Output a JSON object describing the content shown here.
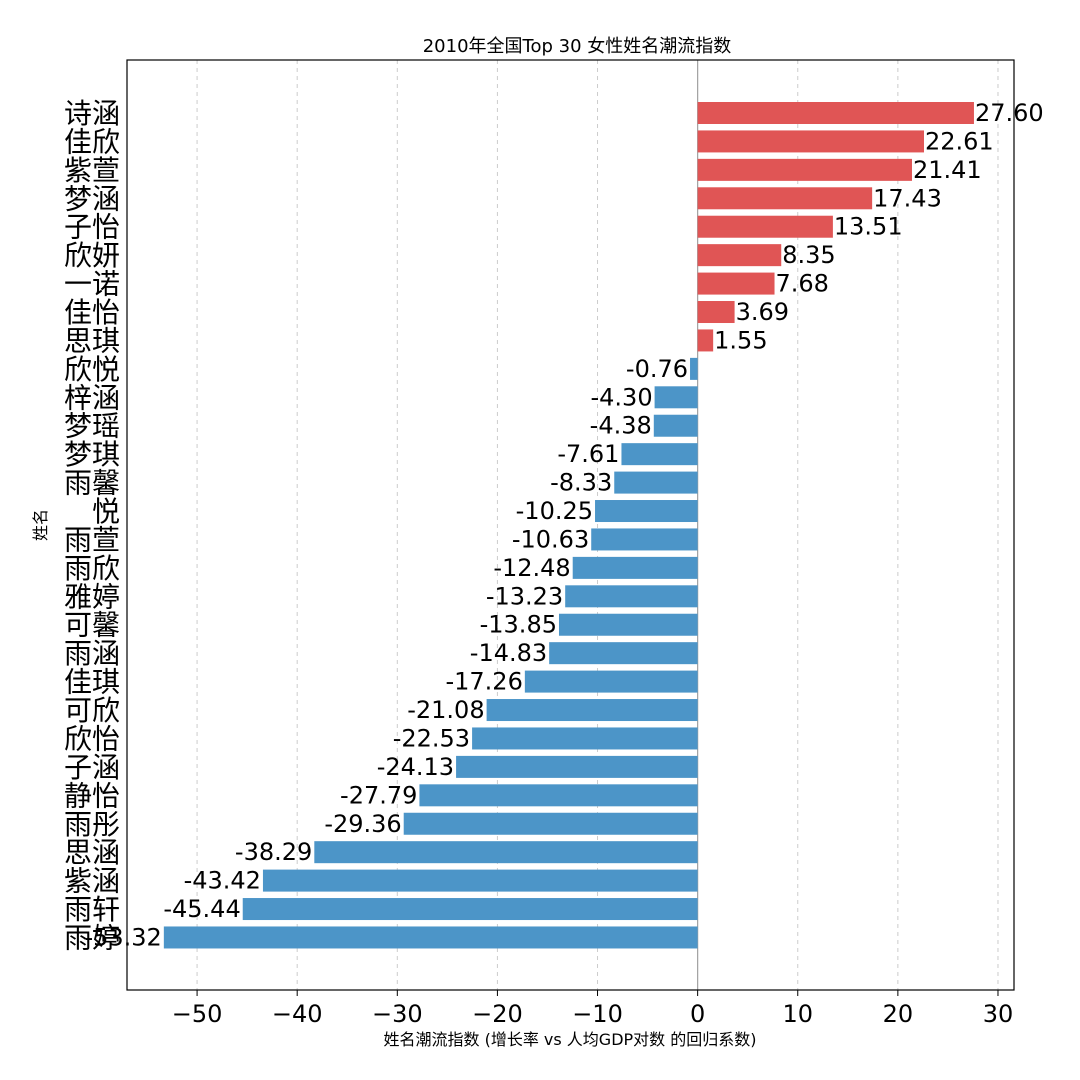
{
  "chart_data": {
    "type": "bar",
    "orientation": "horizontal",
    "title": "2010年全国Top 30 女性姓名潮流指数",
    "xlabel": "姓名潮流指数 (增长率 vs 人均GDP对数 的回归系数)",
    "ylabel": "姓名",
    "xlim": [
      -57,
      31.6
    ],
    "x_ticks": [
      -50,
      -40,
      -30,
      -20,
      -10,
      0,
      10,
      20,
      30
    ],
    "x_tick_labels": [
      "−50",
      "−40",
      "−30",
      "−20",
      "−10",
      "0",
      "10",
      "20",
      "30"
    ],
    "grid": "x, dashed",
    "categories": [
      "诗涵",
      "佳欣",
      "紫萱",
      "梦涵",
      "子怡",
      "欣妍",
      "一诺",
      "佳怡",
      "思琪",
      "欣悦",
      "梓涵",
      "梦瑶",
      "梦琪",
      "雨馨",
      "悦",
      "雨萱",
      "雨欣",
      "雅婷",
      "可馨",
      "雨涵",
      "佳琪",
      "可欣",
      "欣怡",
      "子涵",
      "静怡",
      "雨彤",
      "思涵",
      "紫涵",
      "雨轩",
      "雨婷"
    ],
    "values": [
      27.6,
      22.61,
      21.41,
      17.43,
      13.51,
      8.35,
      7.68,
      3.69,
      1.55,
      -0.76,
      -4.3,
      -4.38,
      -7.61,
      -8.33,
      -10.25,
      -10.63,
      -12.48,
      -13.23,
      -13.85,
      -14.83,
      -17.26,
      -21.08,
      -22.53,
      -24.13,
      -27.79,
      -29.36,
      -38.29,
      -43.42,
      -45.44,
      -53.32
    ],
    "value_labels": [
      "27.60",
      "22.61",
      "21.41",
      "17.43",
      "13.51",
      "8.35",
      "7.68",
      "3.69",
      "1.55",
      "-0.76",
      "-4.30",
      "-4.38",
      "-7.61",
      "-8.33",
      "-10.25",
      "-10.63",
      "-12.48",
      "-13.23",
      "-13.85",
      "-14.83",
      "-17.26",
      "-21.08",
      "-22.53",
      "-24.13",
      "-27.79",
      "-29.36",
      "-38.29",
      "-43.42",
      "-45.44",
      "-53.32"
    ],
    "colors": {
      "positive": "#e05555",
      "negative": "#4c95c8",
      "grid": "#cccccc",
      "zero_line": "#a0a0a0"
    }
  }
}
